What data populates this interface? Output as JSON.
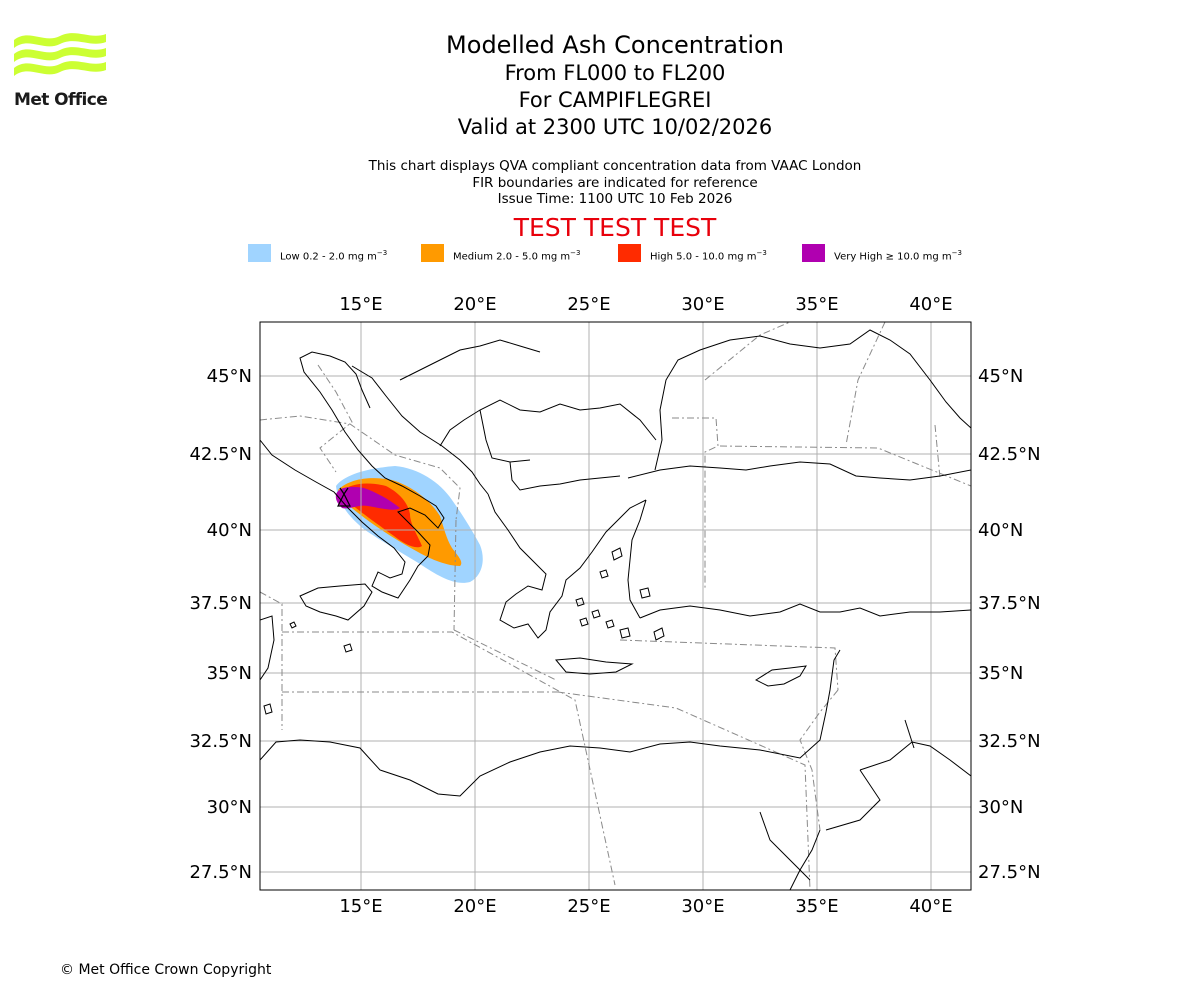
{
  "logo": {
    "text": "Met Office",
    "color": "#ccff33"
  },
  "header": {
    "title": "Modelled Ash Concentration",
    "levels": "From FL000 to FL200",
    "volcano": "For CAMPIFLEGREI",
    "valid_time": "Valid at 2300 UTC 10/02/2026"
  },
  "subtitle": {
    "line1": "This chart displays QVA compliant concentration data from VAAC London",
    "line2": "FIR boundaries are indicated for reference",
    "line3": "Issue Time: 1100 UTC 10 Feb 2026"
  },
  "test_banner": "TEST TEST TEST",
  "legend": [
    {
      "label": "Low 0.2 - 2.0 mg m",
      "unit_exp": "−3",
      "color": "#a0d4ff"
    },
    {
      "label": "Medium 2.0 - 5.0 mg m",
      "unit_exp": "−3",
      "color": "#ff9a00"
    },
    {
      "label": "High 5.0 - 10.0 mg m",
      "unit_exp": "−3",
      "color": "#ff2b00"
    },
    {
      "label": "Very High  ≥  10.0 mg m",
      "unit_exp": "−3",
      "color": "#b000b0"
    }
  ],
  "map": {
    "lon_ticks": [
      "15°E",
      "20°E",
      "25°E",
      "30°E",
      "35°E",
      "40°E"
    ],
    "lat_ticks": [
      "45°N",
      "42.5°N",
      "40°N",
      "37.5°N",
      "35°N",
      "32.5°N",
      "30°N",
      "27.5°N"
    ],
    "volcano_marker": "volcano-triangle-icon",
    "extent": {
      "lon": [
        10.5,
        41.7
      ],
      "lat": [
        26.9,
        46.8
      ]
    }
  },
  "footer": {
    "copyright": "© Met Office Crown Copyright"
  }
}
